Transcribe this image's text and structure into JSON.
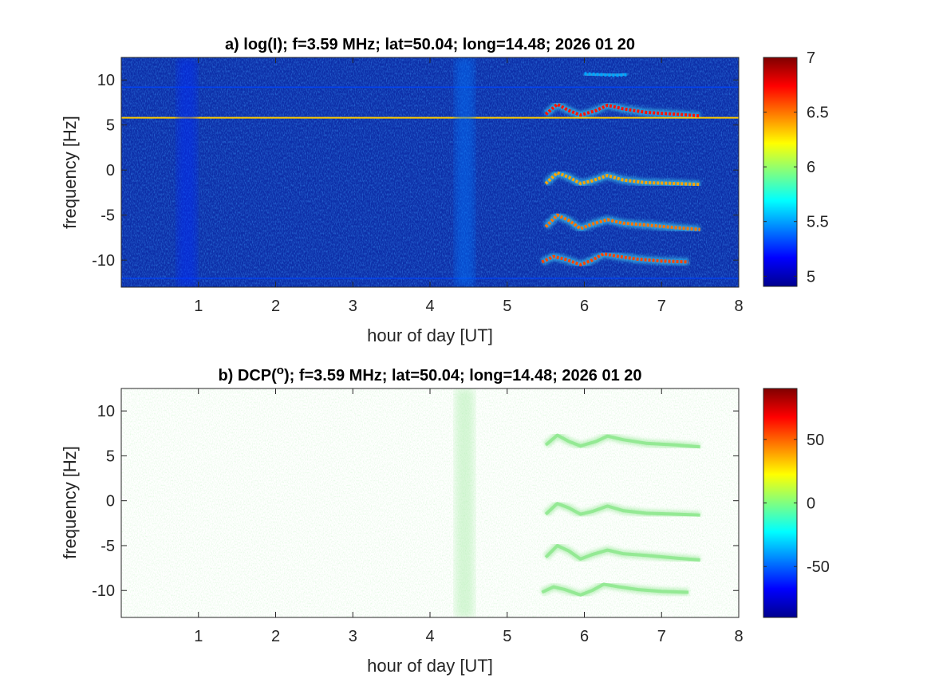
{
  "chart_data": [
    {
      "type": "heatmap",
      "title": "a) log(I); f=3.59 MHz;  lat=50.04; long=14.48; 2026 01 20",
      "xlabel": "hour of day [UT]",
      "ylabel": "frequency [Hz]",
      "xlim": [
        0,
        8
      ],
      "ylim": [
        -13,
        12.5
      ],
      "xticks": [
        "1",
        "2",
        "3",
        "4",
        "5",
        "6",
        "7",
        "8"
      ],
      "xtick_values": [
        1,
        2,
        3,
        4,
        5,
        6,
        7,
        8
      ],
      "yticks": [
        "10",
        "5",
        "0",
        "-5",
        "-10"
      ],
      "ytick_values": [
        10,
        5,
        0,
        -5,
        -10
      ],
      "colorbar": {
        "colormap": "jet",
        "limits": [
          4.9,
          7
        ],
        "ticks": [
          "7",
          "6.5",
          "6",
          "5.5",
          "5"
        ],
        "tick_values": [
          7,
          6.5,
          6,
          5.5,
          5
        ]
      },
      "background_value": 5.05,
      "features": [
        {
          "kind": "horizontal-line",
          "y": 5.8,
          "x_range": [
            0,
            8
          ],
          "value": 6.6
        },
        {
          "kind": "horizontal-line",
          "y": 9.2,
          "x_range": [
            0,
            8
          ],
          "value": 5.3
        },
        {
          "kind": "horizontal-line",
          "y": -12.0,
          "x_range": [
            0,
            8
          ],
          "value": 5.3
        },
        {
          "kind": "vertical-band",
          "x": 4.45,
          "y_range": [
            -13,
            12.5
          ],
          "value": 5.4
        },
        {
          "kind": "vertical-band",
          "x": 0.85,
          "y_range": [
            -13,
            12.5
          ],
          "value": 5.25
        },
        {
          "kind": "trace",
          "name_hidden": true,
          "points": [
            [
              5.5,
              -1.5
            ],
            [
              5.65,
              -0.3
            ],
            [
              5.8,
              -0.8
            ],
            [
              5.95,
              -1.5
            ],
            [
              6.1,
              -1.2
            ],
            [
              6.3,
              -0.6
            ],
            [
              6.5,
              -1.1
            ],
            [
              6.8,
              -1.4
            ],
            [
              7.2,
              -1.5
            ],
            [
              7.5,
              -1.6
            ]
          ],
          "value": 6.4
        },
        {
          "kind": "trace",
          "points": [
            [
              5.5,
              -6.3
            ],
            [
              5.65,
              -5.0
            ],
            [
              5.8,
              -5.6
            ],
            [
              5.95,
              -6.5
            ],
            [
              6.1,
              -6.0
            ],
            [
              6.3,
              -5.5
            ],
            [
              6.5,
              -5.9
            ],
            [
              6.8,
              -6.1
            ],
            [
              7.2,
              -6.4
            ],
            [
              7.5,
              -6.6
            ]
          ],
          "value": 6.5
        },
        {
          "kind": "trace",
          "points": [
            [
              5.45,
              -10.2
            ],
            [
              5.6,
              -9.6
            ],
            [
              5.75,
              -9.9
            ],
            [
              5.95,
              -10.5
            ],
            [
              6.1,
              -10.0
            ],
            [
              6.25,
              -9.3
            ],
            [
              6.45,
              -9.6
            ],
            [
              6.7,
              -9.9
            ],
            [
              7.0,
              -10.1
            ],
            [
              7.35,
              -10.2
            ]
          ],
          "value": 6.6
        },
        {
          "kind": "trace",
          "points": [
            [
              5.5,
              6.2
            ],
            [
              5.65,
              7.3
            ],
            [
              5.8,
              6.6
            ],
            [
              5.95,
              6.1
            ],
            [
              6.15,
              6.6
            ],
            [
              6.3,
              7.2
            ],
            [
              6.5,
              6.8
            ],
            [
              6.8,
              6.4
            ],
            [
              7.2,
              6.2
            ],
            [
              7.5,
              6.0
            ]
          ],
          "value": 6.7
        },
        {
          "kind": "trace",
          "points": [
            [
              6.0,
              10.7
            ],
            [
              6.2,
              10.6
            ],
            [
              6.4,
              10.5
            ],
            [
              6.55,
              10.6
            ]
          ],
          "value": 5.5
        }
      ]
    },
    {
      "type": "heatmap",
      "title_prefix": "b) DCP(",
      "title_superscript": "o",
      "title_suffix": "); f=3.59 MHz;  lat=50.04; long=14.48; 2026 01 20",
      "xlabel": "hour of day [UT]",
      "ylabel": "frequency [Hz]",
      "xlim": [
        0,
        8
      ],
      "ylim": [
        -13,
        12.5
      ],
      "xticks": [
        "1",
        "2",
        "3",
        "4",
        "5",
        "6",
        "7",
        "8"
      ],
      "xtick_values": [
        1,
        2,
        3,
        4,
        5,
        6,
        7,
        8
      ],
      "yticks": [
        "10",
        "5",
        "0",
        "-5",
        "-10"
      ],
      "ytick_values": [
        10,
        5,
        0,
        -5,
        -10
      ],
      "colorbar": {
        "colormap": "jet",
        "limits": [
          -90,
          90
        ],
        "ticks": [
          "50",
          "0",
          "-50"
        ],
        "tick_values": [
          50,
          0,
          -50
        ]
      },
      "background_value": 0,
      "features": [
        {
          "kind": "horizontal-line",
          "y": 5.8,
          "x_range": [
            0,
            8
          ],
          "value": 0
        },
        {
          "kind": "vertical-band",
          "x": 4.45,
          "y_range": [
            -13,
            12.5
          ],
          "value": 0
        },
        {
          "kind": "trace",
          "points": [
            [
              5.5,
              -1.5
            ],
            [
              5.65,
              -0.3
            ],
            [
              5.8,
              -0.8
            ],
            [
              5.95,
              -1.5
            ],
            [
              6.1,
              -1.2
            ],
            [
              6.3,
              -0.6
            ],
            [
              6.5,
              -1.1
            ],
            [
              6.8,
              -1.4
            ],
            [
              7.2,
              -1.5
            ],
            [
              7.5,
              -1.6
            ]
          ],
          "value": 0
        },
        {
          "kind": "trace",
          "points": [
            [
              5.5,
              -6.3
            ],
            [
              5.65,
              -5.0
            ],
            [
              5.8,
              -5.6
            ],
            [
              5.95,
              -6.5
            ],
            [
              6.1,
              -6.0
            ],
            [
              6.3,
              -5.5
            ],
            [
              6.5,
              -5.9
            ],
            [
              6.8,
              -6.1
            ],
            [
              7.2,
              -6.4
            ],
            [
              7.5,
              -6.6
            ]
          ],
          "value": 0
        },
        {
          "kind": "trace",
          "points": [
            [
              5.45,
              -10.2
            ],
            [
              5.6,
              -9.6
            ],
            [
              5.75,
              -9.9
            ],
            [
              5.95,
              -10.5
            ],
            [
              6.1,
              -10.0
            ],
            [
              6.25,
              -9.3
            ],
            [
              6.45,
              -9.6
            ],
            [
              6.7,
              -9.9
            ],
            [
              7.0,
              -10.1
            ],
            [
              7.35,
              -10.2
            ]
          ],
          "value": 0
        },
        {
          "kind": "trace",
          "points": [
            [
              5.5,
              6.2
            ],
            [
              5.65,
              7.3
            ],
            [
              5.8,
              6.6
            ],
            [
              5.95,
              6.1
            ],
            [
              6.15,
              6.6
            ],
            [
              6.3,
              7.2
            ],
            [
              6.5,
              6.8
            ],
            [
              6.8,
              6.4
            ],
            [
              7.2,
              6.2
            ],
            [
              7.5,
              6.0
            ]
          ],
          "value": 0
        }
      ]
    }
  ]
}
